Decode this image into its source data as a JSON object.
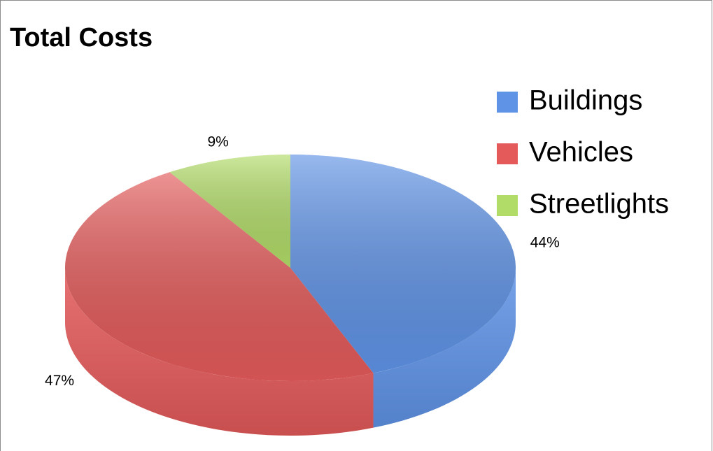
{
  "chart_data": {
    "type": "pie",
    "title": "Total Costs",
    "categories": [
      "Buildings",
      "Vehicles",
      "Streetlights"
    ],
    "values": [
      44,
      47,
      9
    ],
    "value_labels": [
      "44%",
      "47%",
      "9%"
    ],
    "colors": [
      "#5f93e6",
      "#e45a5a",
      "#b2dc68"
    ],
    "legend": "right"
  }
}
